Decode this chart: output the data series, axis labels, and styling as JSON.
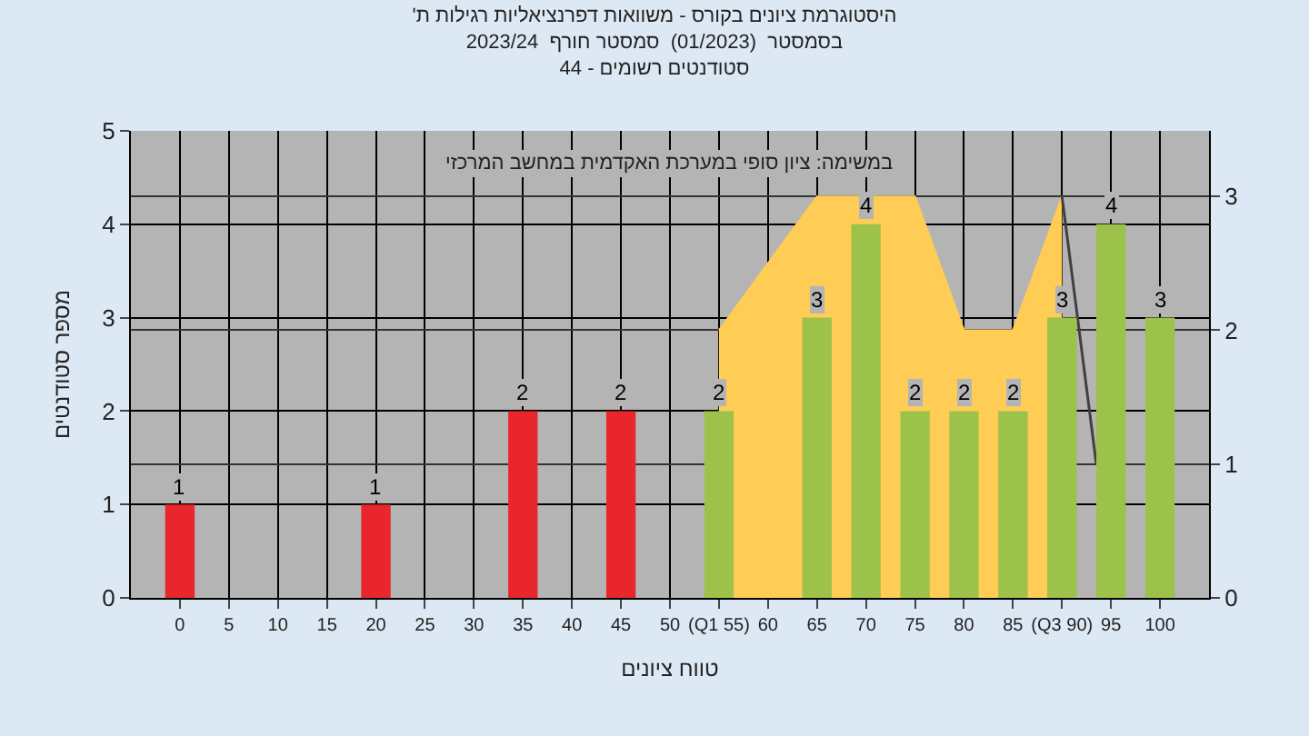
{
  "chart_data": {
    "type": "bar",
    "title": "'היסטוגרמת ציונים בקורס - משוואות דפרנציאליות רגילות ת\nבסמסטר  (01/2023)  סמסטר חורף  2023/24\nסטודנטים רשומים - 44",
    "xlabel": "טווח ציונים",
    "ylabel": "מספר סטודנטים",
    "annotations": [
      "במשימה: ציון סופי במערכת האקדמית במחשב המרכזי"
    ],
    "x": [
      0,
      20,
      35,
      45,
      55,
      65,
      70,
      75,
      80,
      85,
      90,
      95,
      100
    ],
    "series": [
      {
        "values": [
          1,
          1,
          2,
          2,
          2,
          3,
          4,
          2,
          2,
          2,
          3,
          4,
          3
        ],
        "value_labels": [
          "1",
          "1",
          "2",
          "2",
          "2",
          "3",
          "4",
          "2",
          "2",
          "2",
          "3",
          "4",
          "3"
        ],
        "colors": [
          "#e8262b",
          "#e8262b",
          "#e8262b",
          "#e8262b",
          "#9cc24a",
          "#9cc24a",
          "#9cc24a",
          "#9cc24a",
          "#9cc24a",
          "#9cc24a",
          "#9cc24a",
          "#9cc24a",
          "#9cc24a"
        ]
      },
      {
        "type": "area",
        "axis": "y2",
        "color": "#ffcc55",
        "x": [
          55,
          65,
          75,
          80,
          85,
          90
        ],
        "values": [
          2,
          3,
          3,
          2,
          2,
          3
        ]
      },
      {
        "type": "line",
        "axis": "y2",
        "color": "#404040",
        "x": [
          90,
          93.5
        ],
        "values": [
          3,
          1
        ]
      }
    ],
    "xlim": [
      -5,
      105
    ],
    "xticks": [
      0,
      5,
      10,
      15,
      20,
      25,
      30,
      35,
      40,
      45,
      50,
      {
        "value": 55,
        "label": "(Q1 55)"
      },
      60,
      65,
      70,
      75,
      80,
      85,
      {
        "value": 90,
        "label": "(Q3 90)"
      },
      95,
      100
    ],
    "ylim": [
      0,
      5
    ],
    "yticks": [
      0,
      1,
      2,
      3,
      4,
      5
    ],
    "y2lim": [
      0,
      3.49
    ],
    "y2ticks": [
      0,
      1,
      2,
      3
    ],
    "grid": true
  }
}
